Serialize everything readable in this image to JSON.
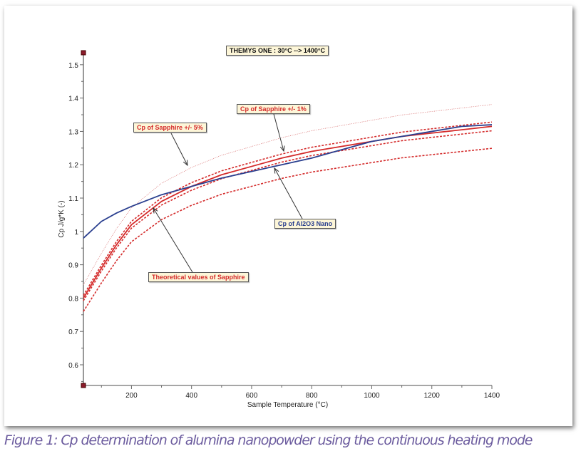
{
  "chart_data": {
    "type": "line",
    "title": "THEMYS ONE : 30°C --> 1400°C",
    "xlabel": "Sample Temperature (°C)",
    "ylabel": "Cp J/g*K (-)",
    "xlim": [
      40,
      1400
    ],
    "ylim": [
      0.538,
      1.536
    ],
    "xticks": [
      "200",
      "400",
      "600",
      "800",
      "1000",
      "1200",
      "1400"
    ],
    "yticks": [
      "0.6",
      "0.7",
      "0.8",
      "0.9",
      "1",
      "1.1",
      "1.2",
      "1.3",
      "1.4",
      "1.5"
    ],
    "grid": false,
    "x": [
      40,
      100,
      150,
      200,
      300,
      400,
      500,
      600,
      700,
      800,
      900,
      1000,
      1100,
      1200,
      1300,
      1400
    ],
    "series": [
      {
        "name": "Theoretical values of Sapphire",
        "color": "#d42a2a",
        "style": "solid",
        "values": [
          0.8,
          0.89,
          0.96,
          1.02,
          1.09,
          1.135,
          1.17,
          1.195,
          1.22,
          1.24,
          1.255,
          1.27,
          1.285,
          1.295,
          1.305,
          1.315
        ]
      },
      {
        "name": "Cp of Sapphire + 1%",
        "color": "#d42a2a",
        "style": "dashed",
        "factor": 1.01
      },
      {
        "name": "Cp of Sapphire - 1%",
        "color": "#d42a2a",
        "style": "dashed",
        "factor": 0.99
      },
      {
        "name": "Cp of Sapphire + 5%",
        "color": "#d87070",
        "style": "dotted",
        "factor": 1.05
      },
      {
        "name": "Cp of Sapphire - 5%",
        "color": "#d42a2a",
        "style": "dashed",
        "factor": 0.95
      },
      {
        "name": "Cp of Al2O3 Nano",
        "color": "#2a3f8f",
        "style": "solid",
        "values": [
          0.98,
          1.03,
          1.055,
          1.075,
          1.11,
          1.135,
          1.16,
          1.18,
          1.2,
          1.22,
          1.245,
          1.27,
          1.285,
          1.3,
          1.315,
          1.32
        ]
      }
    ],
    "annotations": {
      "title_box": "THEMYS ONE : 30°C --> 1400°C",
      "sapphire_1pct": "Cp of Sapphire +/- 1%",
      "sapphire_5pct": "Cp of Sapphire +/- 5%",
      "al2o3": "Cp of Al2O3 Nano",
      "theoretical": "Theoretical values of Sapphire"
    }
  },
  "caption": "Figure 1: Cp determination of alumina nanopowder using the continuous heating mode"
}
